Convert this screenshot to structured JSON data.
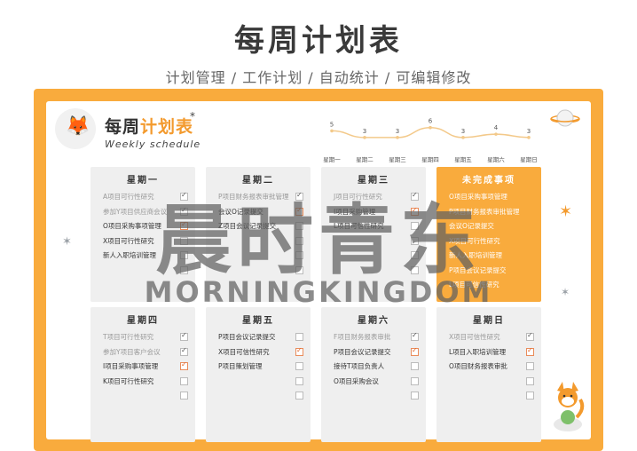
{
  "header": {
    "title": "每周计划表",
    "subtitle": "计划管理 / 工作计划 / 自动统计 / 可编辑修改"
  },
  "logo": {
    "title_prefix": "每周",
    "title_highlight": "计划表",
    "title_star": "*",
    "subtitle": "Weekly schedule"
  },
  "chart_data": {
    "type": "line",
    "categories": [
      "星期一",
      "星期二",
      "星期三",
      "星期四",
      "星期五",
      "星期六",
      "星期日"
    ],
    "values": [
      5,
      3,
      3,
      6,
      3,
      4,
      3
    ],
    "ylim": [
      0,
      7
    ],
    "color": "#f3c98a"
  },
  "days": [
    {
      "name": "星期一",
      "highlight": false,
      "tasks": [
        {
          "text": "A项目可行性研究",
          "status": "done"
        },
        {
          "text": "参加Y项目供应商会议",
          "status": "done"
        },
        {
          "text": "O项目采购事项管理",
          "status": "checked-orange"
        },
        {
          "text": "X项目可行性研究",
          "status": "empty"
        },
        {
          "text": "新人入职培训管理",
          "status": "empty"
        },
        {
          "text": "",
          "status": "empty"
        }
      ]
    },
    {
      "name": "星期二",
      "highlight": false,
      "tasks": [
        {
          "text": "P项目财务报表审批管理",
          "status": "done"
        },
        {
          "text": "会议O记录提交",
          "status": "checked-orange"
        },
        {
          "text": "Z项目会议记录提交",
          "status": "empty"
        },
        {
          "text": "",
          "status": "empty"
        },
        {
          "text": "",
          "status": "empty"
        },
        {
          "text": "",
          "status": "empty"
        }
      ]
    },
    {
      "name": "星期三",
      "highlight": false,
      "tasks": [
        {
          "text": "J项目可行性研究",
          "status": "done"
        },
        {
          "text": "I项目采购管理",
          "status": "checked-orange"
        },
        {
          "text": "L项目可信性研究",
          "status": "empty"
        },
        {
          "text": "",
          "status": "empty"
        },
        {
          "text": "",
          "status": "empty"
        },
        {
          "text": "",
          "status": "empty"
        }
      ]
    },
    {
      "name": "未完成事项",
      "highlight": true,
      "tasks": [
        {
          "text": "O项目采购事项管理",
          "status": "none"
        },
        {
          "text": "P项目财务报表审批管理",
          "status": "none"
        },
        {
          "text": "会议O记录提交",
          "status": "none"
        },
        {
          "text": "X项目可行性研究",
          "status": "none"
        },
        {
          "text": "新人入职培训管理",
          "status": "none"
        },
        {
          "text": "P项目会议记录提交",
          "status": "none"
        },
        {
          "text": "L项目可信性研究",
          "status": "none"
        }
      ]
    },
    {
      "name": "星期四",
      "highlight": false,
      "tasks": [
        {
          "text": "T项目可行性研究",
          "status": "done"
        },
        {
          "text": "参加Y项目客户会议",
          "status": "done"
        },
        {
          "text": "I项目采购事项管理",
          "status": "checked-orange"
        },
        {
          "text": "K项目可行性研究",
          "status": "empty"
        },
        {
          "text": "",
          "status": "empty"
        }
      ]
    },
    {
      "name": "星期五",
      "highlight": false,
      "tasks": [
        {
          "text": "P项目会议记录提交",
          "status": "empty"
        },
        {
          "text": "X项目可信性研究",
          "status": "checked-orange"
        },
        {
          "text": "P项目策划管理",
          "status": "empty"
        },
        {
          "text": "",
          "status": "empty"
        },
        {
          "text": "",
          "status": "empty"
        }
      ]
    },
    {
      "name": "星期六",
      "highlight": false,
      "tasks": [
        {
          "text": "F项目财务报表审批",
          "status": "done"
        },
        {
          "text": "P项目会议记录提交",
          "status": "checked-orange"
        },
        {
          "text": "接待T项目负责人",
          "status": "empty"
        },
        {
          "text": "O项目采购会议",
          "status": "empty"
        },
        {
          "text": "",
          "status": "empty"
        }
      ]
    },
    {
      "name": "星期日",
      "highlight": false,
      "tasks": [
        {
          "text": "X项目可信性研究",
          "status": "done"
        },
        {
          "text": "L项目入职培训管理",
          "status": "checked-orange"
        },
        {
          "text": "O项目财务报表审批",
          "status": "empty"
        },
        {
          "text": "",
          "status": "empty"
        },
        {
          "text": "",
          "status": "empty"
        }
      ]
    }
  ],
  "watermark": {
    "cn": "晨时青东",
    "en": "MORNINGKINGDOM"
  }
}
